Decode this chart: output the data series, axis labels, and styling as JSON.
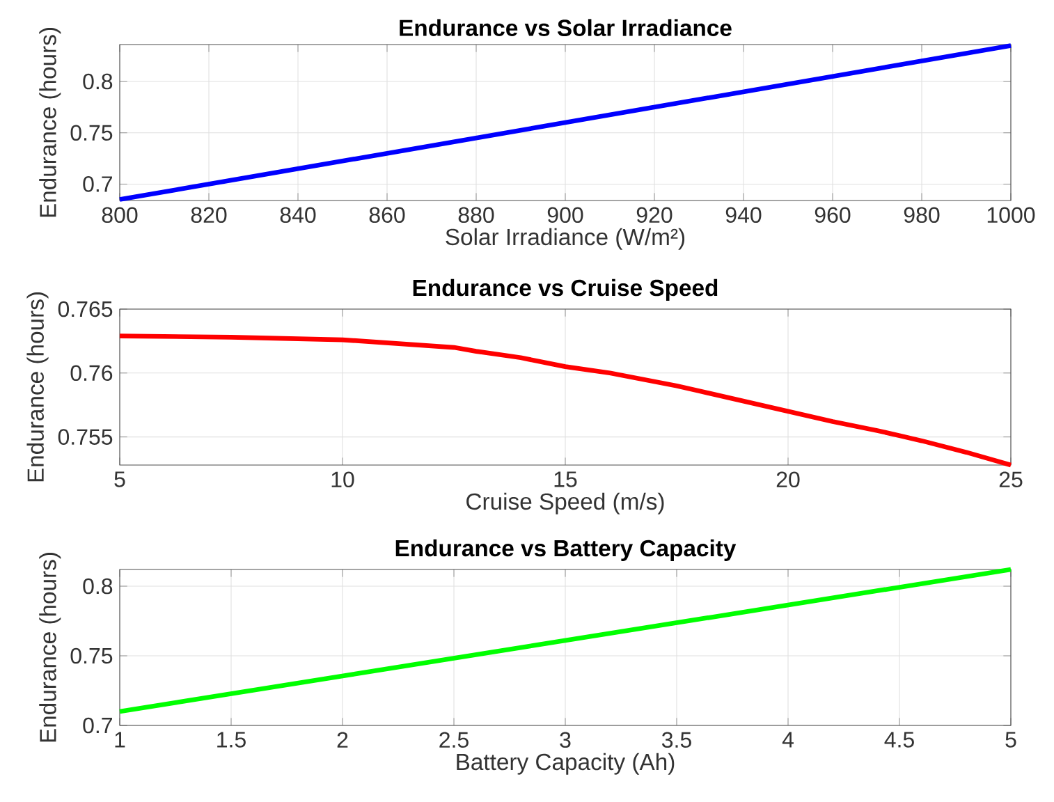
{
  "chart_data": [
    {
      "type": "line",
      "title": "Endurance vs Solar Irradiance",
      "xlabel": "Solar Irradiance (W/m²)",
      "ylabel": "Endurance (hours)",
      "x": [
        800,
        1000
      ],
      "values": [
        0.685,
        0.835
      ],
      "color": "#0000ff",
      "line_style": "solid",
      "xlim": [
        800,
        1000
      ],
      "ylim": [
        0.684,
        0.836
      ],
      "xticks": [
        800,
        820,
        840,
        860,
        880,
        900,
        920,
        940,
        960,
        980,
        1000
      ],
      "yticks": [
        0.7,
        0.75,
        0.8
      ],
      "grid": true
    },
    {
      "type": "line",
      "title": "Endurance vs Cruise Speed",
      "xlabel": "Cruise Speed (m/s)",
      "ylabel": "Endurance (hours)",
      "x": [
        5,
        7.5,
        10,
        12.5,
        13,
        14,
        15,
        16,
        17.5,
        18,
        19,
        20,
        21,
        22,
        22.5,
        23,
        24,
        25
      ],
      "values": [
        0.7629,
        0.7628,
        0.7626,
        0.762,
        0.7617,
        0.7612,
        0.7605,
        0.76,
        0.759,
        0.7586,
        0.7578,
        0.757,
        0.7562,
        0.7555,
        0.7551,
        0.7547,
        0.7538,
        0.7528
      ],
      "color": "#ff0000",
      "line_style": "solid",
      "xlim": [
        5,
        25
      ],
      "ylim": [
        0.7528,
        0.765
      ],
      "xticks": [
        5,
        10,
        15,
        20,
        25
      ],
      "yticks": [
        0.755,
        0.76,
        0.765
      ],
      "grid": true
    },
    {
      "type": "line",
      "title": "Endurance vs Battery Capacity",
      "xlabel": "Battery Capacity (Ah)",
      "ylabel": "Endurance (hours)",
      "x": [
        1,
        5
      ],
      "values": [
        0.71,
        0.812
      ],
      "color": "#00ff00",
      "line_style": "solid",
      "xlim": [
        1,
        5
      ],
      "ylim": [
        0.7,
        0.812
      ],
      "xticks": [
        1,
        1.5,
        2,
        2.5,
        3,
        3.5,
        4,
        4.5,
        5
      ],
      "yticks": [
        0.7,
        0.75,
        0.8
      ],
      "grid": true
    }
  ]
}
